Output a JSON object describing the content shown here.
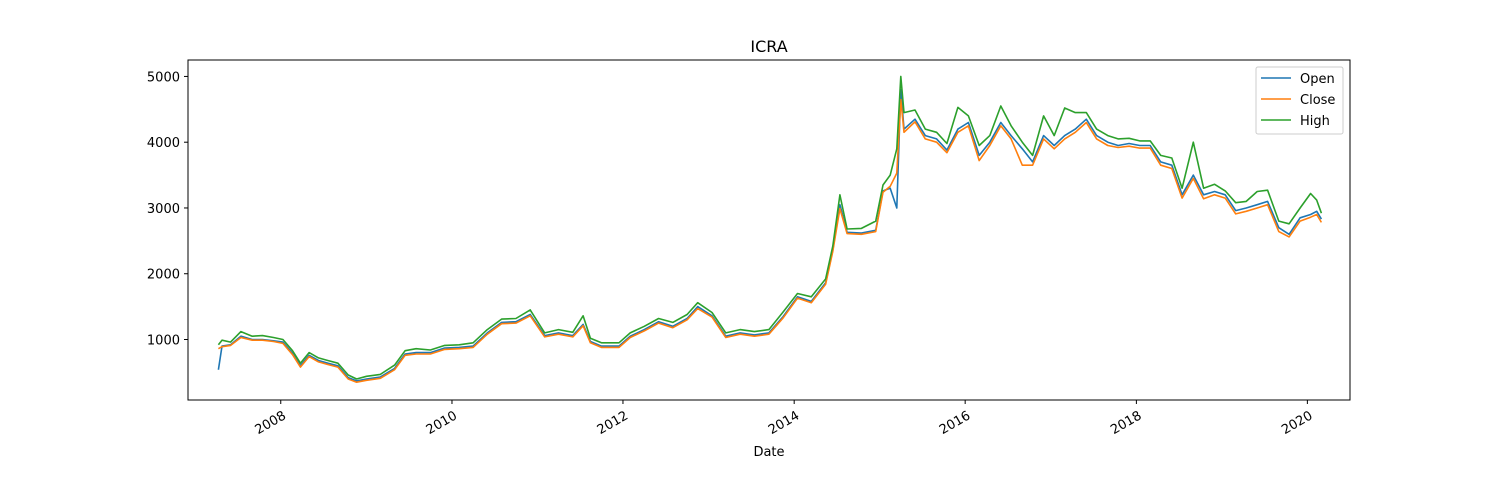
{
  "chart_data": {
    "type": "line",
    "title": "ICRA",
    "xlabel": "Date",
    "ylabel": "",
    "x_axis": {
      "type": "date",
      "range": [
        "2006-12-01",
        "2020-07-01"
      ],
      "ticks": [
        {
          "date": "2008-01-01",
          "label": "2008"
        },
        {
          "date": "2010-01-01",
          "label": "2010"
        },
        {
          "date": "2012-01-01",
          "label": "2012"
        },
        {
          "date": "2014-01-01",
          "label": "2014"
        },
        {
          "date": "2016-01-01",
          "label": "2016"
        },
        {
          "date": "2018-01-01",
          "label": "2018"
        },
        {
          "date": "2020-01-01",
          "label": "2020"
        }
      ]
    },
    "y_axis": {
      "range": [
        80,
        5250
      ],
      "ticks": [
        {
          "value": 1000,
          "label": "1000"
        },
        {
          "value": 2000,
          "label": "2000"
        },
        {
          "value": 3000,
          "label": "3000"
        },
        {
          "value": 4000,
          "label": "4000"
        },
        {
          "value": 5000,
          "label": "5000"
        }
      ]
    },
    "grid": false,
    "legend": {
      "placement": "top-right"
    },
    "series": [
      {
        "name": "Open",
        "color": "#1f77b4"
      },
      {
        "name": "Close",
        "color": "#ff7f0e"
      },
      {
        "name": "High",
        "color": "#2ca02c"
      }
    ],
    "dates": [
      "2007-04-10",
      "2007-04-25",
      "2007-06-01",
      "2007-07-15",
      "2007-09-01",
      "2007-10-15",
      "2007-12-01",
      "2008-01-10",
      "2008-02-20",
      "2008-03-25",
      "2008-05-01",
      "2008-06-10",
      "2008-07-20",
      "2008-09-01",
      "2008-10-15",
      "2008-11-20",
      "2009-01-01",
      "2009-03-01",
      "2009-05-01",
      "2009-06-15",
      "2009-08-01",
      "2009-10-01",
      "2009-12-01",
      "2010-02-01",
      "2010-04-01",
      "2010-06-01",
      "2010-08-01",
      "2010-10-01",
      "2010-12-01",
      "2011-02-01",
      "2011-04-01",
      "2011-06-01",
      "2011-07-15",
      "2011-08-15",
      "2011-10-01",
      "2011-12-15",
      "2012-02-01",
      "2012-04-01",
      "2012-06-01",
      "2012-08-01",
      "2012-10-01",
      "2012-11-15",
      "2013-01-15",
      "2013-03-15",
      "2013-05-15",
      "2013-07-15",
      "2013-09-15",
      "2013-11-15",
      "2014-01-15",
      "2014-03-15",
      "2014-05-15",
      "2014-06-15",
      "2014-07-15",
      "2014-08-15",
      "2014-10-15",
      "2014-12-15",
      "2015-01-15",
      "2015-02-15",
      "2015-03-15",
      "2015-04-01",
      "2015-04-15",
      "2015-06-01",
      "2015-07-15",
      "2015-09-01",
      "2015-10-15",
      "2015-12-01",
      "2016-01-15",
      "2016-03-01",
      "2016-04-15",
      "2016-06-01",
      "2016-07-15",
      "2016-09-01",
      "2016-10-15",
      "2016-12-01",
      "2017-01-15",
      "2017-03-01",
      "2017-04-15",
      "2017-06-01",
      "2017-07-15",
      "2017-09-01",
      "2017-10-15",
      "2017-12-01",
      "2018-01-15",
      "2018-03-01",
      "2018-04-15",
      "2018-06-01",
      "2018-07-15",
      "2018-09-01",
      "2018-10-15",
      "2018-12-01",
      "2019-01-15",
      "2019-03-01",
      "2019-04-15",
      "2019-06-01",
      "2019-07-15",
      "2019-09-01",
      "2019-10-15",
      "2019-12-01",
      "2020-01-15",
      "2020-02-10",
      "2020-03-01"
    ],
    "open": [
      540,
      900,
      920,
      1050,
      1000,
      1000,
      980,
      960,
      790,
      600,
      760,
      680,
      640,
      600,
      420,
      370,
      400,
      430,
      560,
      780,
      800,
      800,
      870,
      880,
      900,
      1100,
      1260,
      1270,
      1380,
      1060,
      1100,
      1060,
      1230,
      970,
      900,
      900,
      1050,
      1150,
      1270,
      1200,
      1320,
      1500,
      1360,
      1050,
      1100,
      1070,
      1100,
      1350,
      1650,
      1580,
      1860,
      2360,
      3050,
      2630,
      2620,
      2660,
      3260,
      3300,
      3000,
      4800,
      4200,
      4350,
      4100,
      4050,
      3880,
      4200,
      4300,
      3800,
      4000,
      4300,
      4100,
      3900,
      3700,
      4100,
      3950,
      4100,
      4200,
      4350,
      4100,
      4000,
      3950,
      3980,
      3950,
      3950,
      3700,
      3650,
      3200,
      3500,
      3200,
      3250,
      3200,
      2960,
      3000,
      3050,
      3100,
      2700,
      2600,
      2850,
      2900,
      2950,
      2830
    ],
    "close": [
      860,
      890,
      910,
      1030,
      990,
      990,
      970,
      940,
      770,
      580,
      740,
      660,
      620,
      580,
      400,
      350,
      380,
      410,
      540,
      760,
      780,
      780,
      850,
      860,
      880,
      1080,
      1240,
      1250,
      1360,
      1040,
      1080,
      1040,
      1210,
      950,
      880,
      880,
      1030,
      1130,
      1250,
      1180,
      1300,
      1470,
      1340,
      1030,
      1080,
      1050,
      1080,
      1330,
      1630,
      1560,
      1840,
      2340,
      2990,
      2610,
      2600,
      2640,
      3240,
      3330,
      3530,
      4650,
      4150,
      4310,
      4050,
      4000,
      3840,
      4150,
      4250,
      3720,
      3950,
      4250,
      4050,
      3650,
      3650,
      4050,
      3900,
      4050,
      4150,
      4300,
      4050,
      3950,
      3920,
      3940,
      3910,
      3910,
      3650,
      3600,
      3150,
      3450,
      3140,
      3200,
      3150,
      2910,
      2950,
      3000,
      3050,
      2640,
      2560,
      2800,
      2860,
      2900,
      2780
    ],
    "high": [
      920,
      990,
      960,
      1120,
      1050,
      1060,
      1030,
      1000,
      830,
      640,
      800,
      720,
      680,
      640,
      460,
      400,
      440,
      470,
      610,
      830,
      860,
      840,
      910,
      920,
      950,
      1150,
      1310,
      1320,
      1450,
      1100,
      1150,
      1110,
      1360,
      1020,
      950,
      950,
      1100,
      1200,
      1320,
      1260,
      1380,
      1560,
      1410,
      1100,
      1150,
      1120,
      1150,
      1420,
      1700,
      1650,
      1920,
      2420,
      3200,
      2680,
      2690,
      2800,
      3350,
      3500,
      3900,
      5000,
      4450,
      4490,
      4200,
      4150,
      3980,
      4530,
      4400,
      3950,
      4100,
      4550,
      4250,
      4000,
      3800,
      4400,
      4100,
      4520,
      4450,
      4450,
      4200,
      4100,
      4050,
      4060,
      4020,
      4020,
      3800,
      3760,
      3300,
      4000,
      3300,
      3360,
      3260,
      3080,
      3100,
      3250,
      3270,
      2800,
      2760,
      3000,
      3220,
      3120,
      2920
    ]
  }
}
